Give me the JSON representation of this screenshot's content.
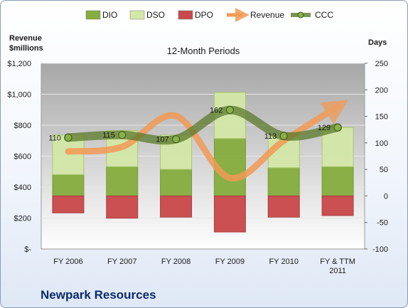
{
  "company": "Newpark Resources",
  "chart_data": {
    "type": "bar",
    "title": "12-Month Periods",
    "left_axis_label": [
      "Revenue",
      "$millions"
    ],
    "right_axis_label": "Days",
    "categories": [
      [
        "FY 2006"
      ],
      [
        "FY 2007"
      ],
      [
        "FY 2008"
      ],
      [
        "FY 2009"
      ],
      [
        "FY 2010"
      ],
      [
        "FY & TTM",
        "2011"
      ]
    ],
    "left_ticks": [
      "$-",
      "$200",
      "$400",
      "$600",
      "$800",
      "$1,000",
      "$1,200"
    ],
    "left_ylim": [
      0,
      1200
    ],
    "right_ticks": [
      "-100",
      "-50",
      "0",
      "50",
      "100",
      "150",
      "200",
      "250"
    ],
    "right_ylim": [
      -100,
      250
    ],
    "grid": true,
    "legend_position": "top",
    "legend": [
      "DIO",
      "DSO",
      "DPO",
      "Revenue",
      "CCC"
    ],
    "series": [
      {
        "name": "DIO",
        "axis": "right",
        "color": "#86ad3e",
        "values": [
          40,
          55,
          50,
          108,
          53,
          55
        ]
      },
      {
        "name": "DSO",
        "axis": "right",
        "color": "#d4e8a8",
        "values": [
          75,
          68,
          65,
          87,
          60,
          74
        ]
      },
      {
        "name": "DPO",
        "axis": "right",
        "color": "#c9484a",
        "values": [
          -32,
          -42,
          -40,
          -68,
          -40,
          -37
        ]
      },
      {
        "name": "Revenue",
        "axis": "left",
        "color": "#f29a55",
        "values": [
          630,
          660,
          860,
          460,
          700,
          920
        ]
      },
      {
        "name": "CCC",
        "axis": "right",
        "color": "#5b7a2b",
        "values": [
          110,
          115,
          107,
          162,
          113,
          129
        ],
        "labels": [
          "110",
          "115",
          "107",
          "162",
          "113",
          "129"
        ]
      }
    ]
  }
}
